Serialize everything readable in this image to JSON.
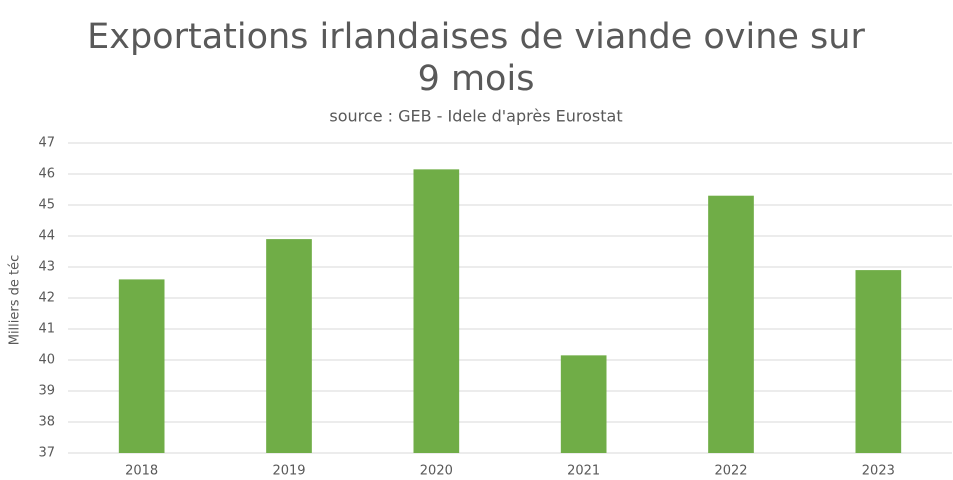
{
  "chart_data": {
    "type": "bar",
    "title": "Exportations irlandaises de viande ovine sur 9 mois",
    "subtitle": "source : GEB - Idele d'après Eurostat",
    "y_label": "Milliers de téc",
    "categories": [
      "2018",
      "2019",
      "2020",
      "2021",
      "2022",
      "2023"
    ],
    "values": [
      42.6,
      43.9,
      46.15,
      40.15,
      45.3,
      42.9
    ],
    "color": "#70ad47",
    "ylim": [
      37,
      47
    ],
    "yticks": [
      37,
      38,
      39,
      40,
      41,
      42,
      43,
      44,
      45,
      46,
      47
    ],
    "grid": true
  }
}
